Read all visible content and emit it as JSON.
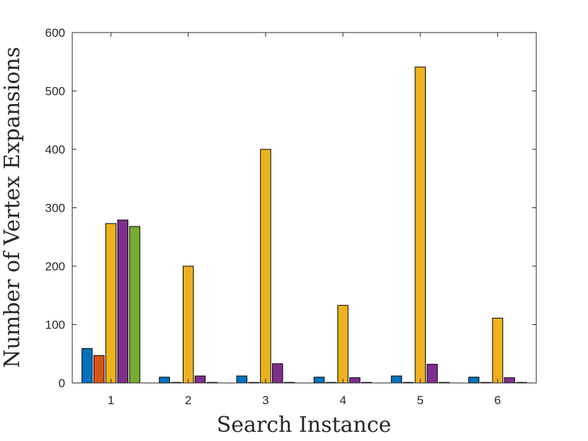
{
  "chart_data": {
    "type": "bar",
    "title": "",
    "xlabel": "Search Instance",
    "ylabel": "Number of Vertex Expansions",
    "categories": [
      "1",
      "2",
      "3",
      "4",
      "5",
      "6"
    ],
    "ylim": [
      0,
      600
    ],
    "yticks": [
      "0",
      "100",
      "200",
      "300",
      "400",
      "500",
      "600"
    ],
    "grid": false,
    "legend": "none",
    "series": [
      {
        "color": "#0072BD",
        "values": [
          59,
          10,
          12,
          10,
          12,
          10
        ]
      },
      {
        "color": "#D95319",
        "values": [
          47,
          1,
          1,
          1,
          1,
          1
        ]
      },
      {
        "color": "#EDB120",
        "values": [
          273,
          200,
          400,
          133,
          541,
          111
        ]
      },
      {
        "color": "#7E2F8E",
        "values": [
          279,
          12,
          33,
          9,
          32,
          9
        ]
      },
      {
        "color": "#77AC30",
        "values": [
          268,
          1,
          1,
          1,
          1,
          1
        ]
      }
    ]
  }
}
